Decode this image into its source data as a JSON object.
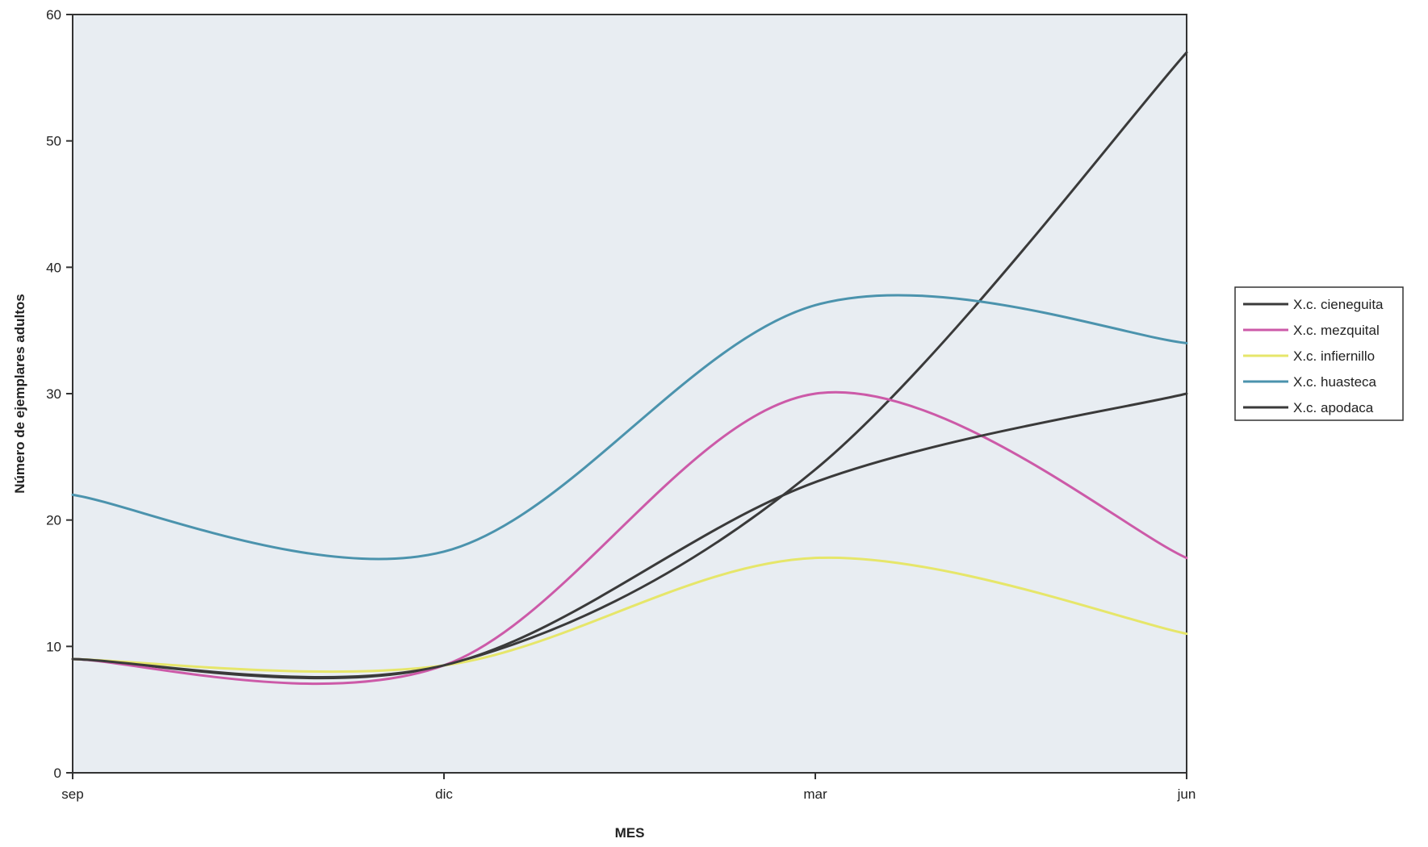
{
  "chart_data": {
    "type": "line",
    "xlabel": "MES",
    "ylabel": "Número de ejemplares adultos",
    "categories": [
      "sep",
      "dic",
      "mar",
      "jun"
    ],
    "ylim": [
      0,
      60
    ],
    "yticks": [
      0,
      10,
      20,
      30,
      40,
      50,
      60
    ],
    "grid": false,
    "legend_position": "right",
    "smooth": true,
    "plot_background": "#e8edf2",
    "series": [
      {
        "name": "X.c. cieneguita",
        "color": "#3a3a3a",
        "values": [
          9,
          8.5,
          24,
          57
        ]
      },
      {
        "name": "X.c. mezquital",
        "color": "#cc5aa8",
        "values": [
          9,
          8.5,
          30,
          17
        ]
      },
      {
        "name": "X.c. infiernillo",
        "color": "#e6e66a",
        "values": [
          9,
          8.5,
          17,
          11
        ]
      },
      {
        "name": "X.c. huasteca",
        "color": "#4b93ad",
        "values": [
          22,
          17.5,
          37,
          34
        ]
      },
      {
        "name": "X.c. apodaca",
        "color": "#3a3a3a",
        "values": [
          9,
          8.5,
          23,
          30
        ]
      }
    ]
  }
}
